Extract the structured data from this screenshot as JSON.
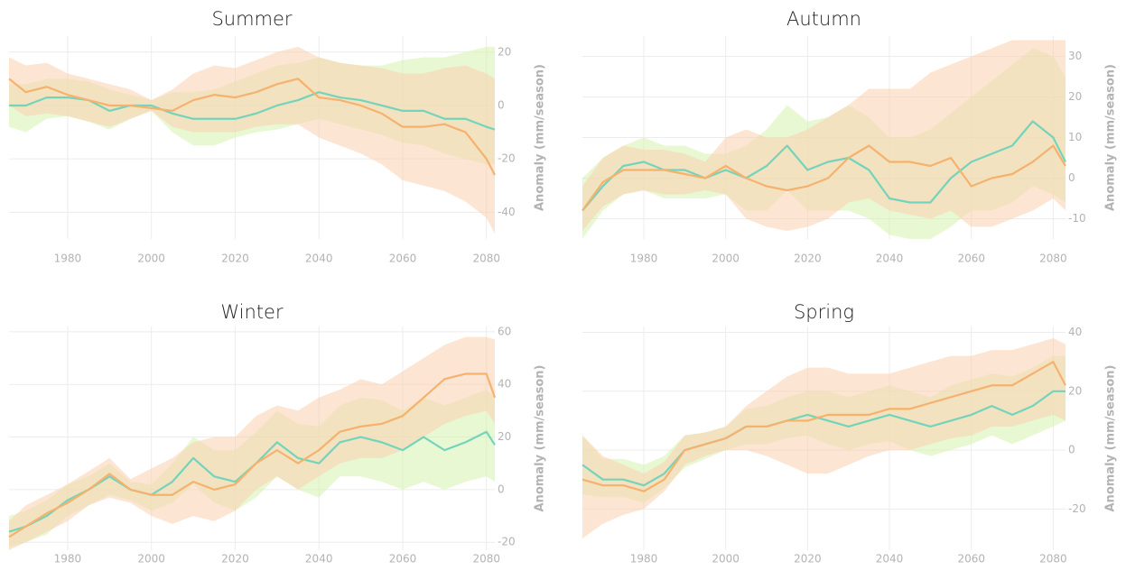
{
  "chart_data": [
    {
      "type": "line",
      "title": "Summer",
      "ylabel": "Anomaly (mm/season)",
      "x": [
        1966,
        1970,
        1975,
        1980,
        1985,
        1990,
        1995,
        2000,
        2005,
        2010,
        2015,
        2020,
        2025,
        2030,
        2035,
        2040,
        2045,
        2050,
        2055,
        2060,
        2065,
        2070,
        2075,
        2080,
        2082
      ],
      "xlim": [
        1966,
        2082
      ],
      "xticks": [
        1980,
        2000,
        2020,
        2040,
        2060,
        2080
      ],
      "ylim": [
        -50,
        26
      ],
      "yticks": [
        20,
        0,
        -20,
        -40
      ],
      "grid": true,
      "series": [
        {
          "color": "#74d4bb",
          "band_color": "#d6f3ae",
          "values": [
            0,
            0,
            3,
            3,
            2,
            -2,
            0,
            0,
            -3,
            -5,
            -5,
            -5,
            -3,
            0,
            2,
            5,
            3,
            2,
            0,
            -2,
            -2,
            -5,
            -5,
            -8,
            -9
          ],
          "lower": [
            -8,
            -10,
            -5,
            -4,
            -6,
            -9,
            -5,
            -2,
            -10,
            -15,
            -15,
            -12,
            -10,
            -9,
            -7,
            -5,
            -7,
            -9,
            -11,
            -14,
            -15,
            -18,
            -20,
            -22,
            -22
          ],
          "upper": [
            8,
            8,
            10,
            10,
            9,
            6,
            4,
            2,
            5,
            5,
            6,
            9,
            12,
            15,
            16,
            18,
            16,
            15,
            15,
            17,
            18,
            18,
            20,
            22,
            22
          ]
        },
        {
          "color": "#f5b26f",
          "band_color": "#fbcfae",
          "values": [
            10,
            5,
            7,
            4,
            2,
            0,
            0,
            -1,
            -2,
            2,
            4,
            3,
            5,
            8,
            10,
            3,
            2,
            0,
            -3,
            -8,
            -8,
            -7,
            -10,
            -20,
            -26
          ],
          "lower": [
            0,
            -4,
            -3,
            -4,
            -6,
            -8,
            -5,
            -2,
            -8,
            -10,
            -10,
            -10,
            -8,
            -7,
            -7,
            -12,
            -15,
            -18,
            -22,
            -28,
            -30,
            -32,
            -36,
            -42,
            -48
          ],
          "upper": [
            18,
            15,
            16,
            12,
            10,
            8,
            6,
            2,
            6,
            12,
            15,
            14,
            17,
            20,
            22,
            18,
            16,
            15,
            14,
            12,
            12,
            14,
            15,
            12,
            10
          ]
        }
      ]
    },
    {
      "type": "line",
      "title": "Autumn",
      "ylabel": "Anomaly (mm/season)",
      "x": [
        1965,
        1970,
        1975,
        1980,
        1985,
        1990,
        1995,
        2000,
        2005,
        2010,
        2015,
        2020,
        2025,
        2030,
        2035,
        2040,
        2045,
        2050,
        2055,
        2060,
        2065,
        2070,
        2075,
        2080,
        2083
      ],
      "xlim": [
        1965,
        2083
      ],
      "xticks": [
        1980,
        2000,
        2020,
        2040,
        2060,
        2080
      ],
      "ylim": [
        -15,
        35
      ],
      "yticks": [
        30,
        20,
        10,
        0,
        -10
      ],
      "grid": true,
      "series": [
        {
          "color": "#74d4bb",
          "band_color": "#d6f3ae",
          "values": [
            -8,
            -2,
            3,
            4,
            2,
            2,
            0,
            2,
            0,
            3,
            8,
            2,
            4,
            5,
            2,
            -5,
            -6,
            -6,
            0,
            4,
            6,
            8,
            14,
            10,
            4
          ],
          "lower": [
            -15,
            -8,
            -4,
            -3,
            -5,
            -5,
            -5,
            -4,
            -8,
            -8,
            -3,
            -8,
            -8,
            -8,
            -10,
            -14,
            -15,
            -15,
            -12,
            -8,
            -8,
            -6,
            -2,
            -4,
            -6
          ],
          "upper": [
            0,
            5,
            8,
            10,
            8,
            8,
            6,
            6,
            8,
            12,
            18,
            14,
            15,
            18,
            15,
            10,
            10,
            12,
            16,
            20,
            24,
            28,
            32,
            30,
            25
          ]
        },
        {
          "color": "#f5b26f",
          "band_color": "#fbcfae",
          "values": [
            -8,
            -1,
            2,
            2,
            2,
            1,
            0,
            3,
            0,
            -2,
            -3,
            -2,
            0,
            5,
            8,
            4,
            4,
            3,
            5,
            -2,
            0,
            1,
            4,
            8,
            3
          ],
          "lower": [
            -13,
            -7,
            -4,
            -3,
            -4,
            -4,
            -3,
            -4,
            -10,
            -12,
            -13,
            -12,
            -10,
            -6,
            -5,
            -8,
            -9,
            -10,
            -8,
            -12,
            -12,
            -10,
            -8,
            -5,
            -8
          ],
          "upper": [
            -2,
            5,
            8,
            7,
            7,
            6,
            4,
            10,
            12,
            10,
            10,
            12,
            15,
            18,
            22,
            22,
            22,
            26,
            28,
            30,
            32,
            34,
            34,
            34,
            34
          ]
        }
      ]
    },
    {
      "type": "line",
      "title": "Winter",
      "ylabel": "Anomaly (mm/season)",
      "x": [
        1966,
        1970,
        1975,
        1980,
        1985,
        1990,
        1995,
        2000,
        2005,
        2010,
        2015,
        2020,
        2025,
        2030,
        2035,
        2040,
        2045,
        2050,
        2055,
        2060,
        2065,
        2070,
        2075,
        2080,
        2082
      ],
      "xlim": [
        1966,
        2082
      ],
      "xticks": [
        1980,
        2000,
        2020,
        2040,
        2060,
        2080
      ],
      "ylim": [
        -23,
        62
      ],
      "yticks": [
        60,
        40,
        20,
        0,
        -20
      ],
      "grid": true,
      "series": [
        {
          "color": "#74d4bb",
          "band_color": "#d6f3ae",
          "values": [
            -16,
            -14,
            -10,
            -4,
            0,
            5,
            0,
            -2,
            3,
            12,
            5,
            3,
            10,
            18,
            12,
            10,
            18,
            20,
            18,
            15,
            20,
            15,
            18,
            22,
            17
          ],
          "lower": [
            -22,
            -20,
            -17,
            -10,
            -6,
            -2,
            -4,
            -8,
            -5,
            2,
            -5,
            -8,
            -3,
            5,
            0,
            -3,
            5,
            5,
            3,
            0,
            3,
            0,
            3,
            5,
            3
          ],
          "upper": [
            -10,
            -8,
            -4,
            2,
            5,
            10,
            3,
            2,
            10,
            20,
            15,
            15,
            22,
            30,
            25,
            24,
            32,
            35,
            34,
            30,
            35,
            32,
            35,
            38,
            35
          ]
        },
        {
          "color": "#f5b26f",
          "band_color": "#fbcfae",
          "values": [
            -18,
            -14,
            -9,
            -5,
            0,
            6,
            0,
            -2,
            -2,
            3,
            0,
            2,
            10,
            15,
            10,
            15,
            22,
            24,
            25,
            28,
            35,
            42,
            44,
            44,
            35
          ],
          "lower": [
            -23,
            -20,
            -16,
            -12,
            -6,
            -3,
            -5,
            -10,
            -13,
            -10,
            -12,
            -8,
            0,
            5,
            0,
            5,
            10,
            12,
            12,
            15,
            20,
            25,
            28,
            30,
            25
          ],
          "upper": [
            -12,
            -6,
            -2,
            2,
            7,
            12,
            4,
            8,
            12,
            18,
            20,
            20,
            28,
            32,
            30,
            35,
            38,
            42,
            40,
            45,
            50,
            55,
            58,
            58,
            57
          ]
        }
      ]
    },
    {
      "type": "line",
      "title": "Spring",
      "ylabel": "Anomaly (mm/season)",
      "x": [
        1965,
        1970,
        1975,
        1980,
        1985,
        1990,
        1995,
        2000,
        2005,
        2010,
        2015,
        2020,
        2025,
        2030,
        2035,
        2040,
        2045,
        2050,
        2055,
        2060,
        2065,
        2070,
        2075,
        2080,
        2083
      ],
      "xlim": [
        1965,
        2083
      ],
      "xticks": [
        1980,
        2000,
        2020,
        2040,
        2060,
        2080
      ],
      "ylim": [
        -34,
        42
      ],
      "yticks": [
        40,
        20,
        0,
        -20
      ],
      "grid": true,
      "series": [
        {
          "color": "#74d4bb",
          "band_color": "#d6f3ae",
          "values": [
            -5,
            -10,
            -10,
            -12,
            -8,
            0,
            2,
            4,
            8,
            8,
            10,
            12,
            10,
            8,
            10,
            12,
            10,
            8,
            10,
            12,
            15,
            12,
            15,
            20,
            20
          ],
          "lower": [
            -15,
            -16,
            -16,
            -18,
            -13,
            -6,
            -3,
            0,
            2,
            2,
            4,
            5,
            2,
            0,
            2,
            3,
            0,
            -2,
            0,
            2,
            5,
            2,
            5,
            8,
            10
          ],
          "upper": [
            5,
            -3,
            -3,
            -5,
            -2,
            5,
            6,
            8,
            14,
            15,
            18,
            20,
            20,
            18,
            20,
            22,
            20,
            18,
            22,
            24,
            26,
            25,
            28,
            32,
            32
          ]
        },
        {
          "color": "#f5b26f",
          "band_color": "#fbcfae",
          "values": [
            -10,
            -12,
            -12,
            -14,
            -10,
            0,
            2,
            4,
            8,
            8,
            10,
            10,
            12,
            12,
            12,
            14,
            14,
            16,
            18,
            20,
            22,
            22,
            26,
            30,
            22
          ],
          "lower": [
            -30,
            -25,
            -22,
            -20,
            -14,
            -5,
            -2,
            0,
            0,
            -2,
            -5,
            -8,
            -8,
            -5,
            -2,
            0,
            0,
            2,
            4,
            5,
            8,
            8,
            10,
            12,
            10
          ],
          "upper": [
            5,
            -2,
            -5,
            -8,
            -4,
            5,
            6,
            8,
            15,
            20,
            25,
            28,
            28,
            26,
            26,
            26,
            28,
            30,
            32,
            32,
            34,
            34,
            36,
            38,
            36
          ]
        }
      ]
    }
  ]
}
